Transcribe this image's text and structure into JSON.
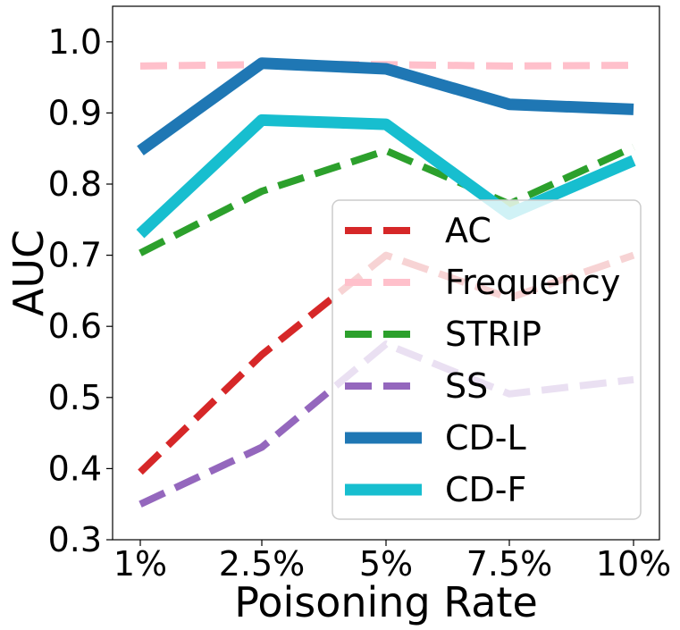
{
  "chart_data": {
    "type": "line",
    "xlabel": "Poisoning Rate",
    "ylabel": "AUC",
    "categories": [
      "1%",
      "2.5%",
      "5%",
      "7.5%",
      "10%"
    ],
    "ylim": [
      0.3,
      1.05
    ],
    "yticks": [
      "0.3",
      "0.4",
      "0.5",
      "0.6",
      "0.7",
      "0.8",
      "0.9",
      "1.0"
    ],
    "grid": false,
    "legend_position": "lower-right",
    "series": [
      {
        "name": "AC",
        "color": "#d62728",
        "style": "dashed",
        "values": [
          0.395,
          0.56,
          0.7,
          0.64,
          0.7
        ]
      },
      {
        "name": "Frequency",
        "color": "#ffc0cb",
        "style": "dashed",
        "values": [
          0.966,
          0.968,
          0.968,
          0.966,
          0.967
        ]
      },
      {
        "name": "STRIP",
        "color": "#2ca02c",
        "style": "dashed",
        "values": [
          0.703,
          0.79,
          0.847,
          0.772,
          0.852
        ]
      },
      {
        "name": "SS",
        "color": "#9467bd",
        "style": "dashed",
        "values": [
          0.35,
          0.43,
          0.575,
          0.505,
          0.525
        ]
      },
      {
        "name": "CD-L",
        "color": "#1f77b4",
        "style": "solid",
        "values": [
          0.847,
          0.97,
          0.962,
          0.912,
          0.905
        ]
      },
      {
        "name": "CD-F",
        "color": "#17becf",
        "style": "solid",
        "values": [
          0.73,
          0.89,
          0.884,
          0.758,
          0.833
        ]
      }
    ]
  }
}
